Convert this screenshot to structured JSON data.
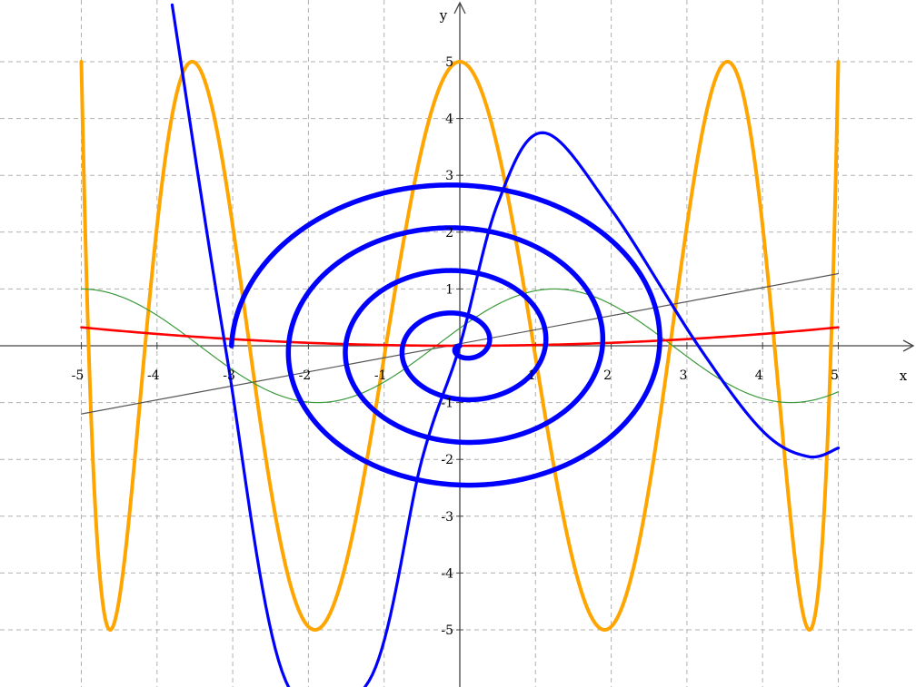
{
  "chart_data": {
    "type": "line",
    "title": "",
    "xlabel": "x",
    "ylabel": "y",
    "xlim": [
      -5.4,
      5.95
    ],
    "ylim": [
      -5.9,
      6.05
    ],
    "grid": true,
    "x_ticks": [
      -5,
      -4,
      -3,
      -2,
      -1,
      1,
      2,
      3,
      4,
      5
    ],
    "y_ticks": [
      -5,
      -4,
      -3,
      -2,
      -1,
      1,
      2,
      3,
      4,
      5
    ],
    "x_tick_labels": [
      "-5",
      "-4",
      "-3",
      "-2",
      "-1",
      "1",
      "2",
      "3",
      "4",
      "5"
    ],
    "y_tick_labels": [
      "-5",
      "-4",
      "-3",
      "-2",
      "-1",
      "1",
      "2",
      "3",
      "4",
      "5"
    ],
    "series": [
      {
        "color": "#ffa500",
        "kind": "parametric",
        "x_expr": "5*sin(t)",
        "y_expr": "5*sin(8*t)",
        "t_range": [
          0,
          6.283185
        ]
      },
      {
        "color": "#0000ff",
        "kind": "polar-spiral",
        "r_expr": "theta/(2*pi)*0.75",
        "theta_range": [
          0,
          25.13
        ]
      },
      {
        "color": "#0000ff",
        "kind": "function",
        "expr": "cubic through (-3.4,5) (-1,-5) (0,0) (1.1,3.8) (4.7,-2)",
        "points": [
          [
            -3.8,
            6.0
          ],
          [
            -3.1,
            0.0
          ],
          [
            -2.3,
            -5.9
          ],
          [
            -1.2,
            -5.9
          ],
          [
            -0.5,
            -2.0
          ],
          [
            0,
            0.0
          ],
          [
            0.5,
            2.5
          ],
          [
            1.1,
            3.75
          ],
          [
            2.0,
            2.4
          ],
          [
            3.15,
            0.0
          ],
          [
            4.0,
            -1.5
          ],
          [
            4.6,
            -1.95
          ],
          [
            5.0,
            -1.8
          ]
        ]
      },
      {
        "color": "#ff0000",
        "kind": "function",
        "expr": "0.013*x^2",
        "x_range": [
          -5,
          5
        ]
      },
      {
        "color": "#3c9a3c",
        "kind": "function",
        "expr": "cos(x+0.3)*1 shifted",
        "x_range": [
          -5,
          5
        ]
      },
      {
        "color": "#555555",
        "kind": "function",
        "expr": "0.25*x",
        "x_range": [
          -5,
          5
        ]
      }
    ]
  }
}
